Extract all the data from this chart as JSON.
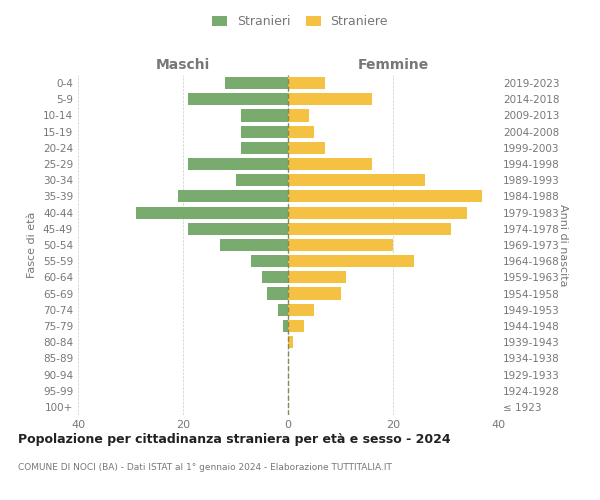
{
  "age_groups": [
    "100+",
    "95-99",
    "90-94",
    "85-89",
    "80-84",
    "75-79",
    "70-74",
    "65-69",
    "60-64",
    "55-59",
    "50-54",
    "45-49",
    "40-44",
    "35-39",
    "30-34",
    "25-29",
    "20-24",
    "15-19",
    "10-14",
    "5-9",
    "0-4"
  ],
  "birth_years": [
    "≤ 1923",
    "1924-1928",
    "1929-1933",
    "1934-1938",
    "1939-1943",
    "1944-1948",
    "1949-1953",
    "1954-1958",
    "1959-1963",
    "1964-1968",
    "1969-1973",
    "1974-1978",
    "1979-1983",
    "1984-1988",
    "1989-1993",
    "1994-1998",
    "1999-2003",
    "2004-2008",
    "2009-2013",
    "2014-2018",
    "2019-2023"
  ],
  "maschi": [
    0,
    0,
    0,
    0,
    0,
    1,
    2,
    4,
    5,
    7,
    13,
    19,
    29,
    21,
    10,
    19,
    9,
    9,
    9,
    19,
    12
  ],
  "femmine": [
    0,
    0,
    0,
    0,
    1,
    3,
    5,
    10,
    11,
    24,
    20,
    31,
    34,
    37,
    26,
    16,
    7,
    5,
    4,
    16,
    7
  ],
  "color_maschi": "#7aab6e",
  "color_femmine": "#f5c142",
  "title": "Popolazione per cittadinanza straniera per età e sesso - 2024",
  "subtitle": "COMUNE DI NOCI (BA) - Dati ISTAT al 1° gennaio 2024 - Elaborazione TUTTITALIA.IT",
  "label_maschi": "Stranieri",
  "label_femmine": "Straniere",
  "header_left": "Maschi",
  "header_right": "Femmine",
  "ylabel_left": "Fasce di età",
  "ylabel_right": "Anni di nascita",
  "xlim": 40,
  "bg_color": "#ffffff",
  "grid_color": "#cccccc",
  "text_color": "#777777",
  "title_color": "#222222"
}
